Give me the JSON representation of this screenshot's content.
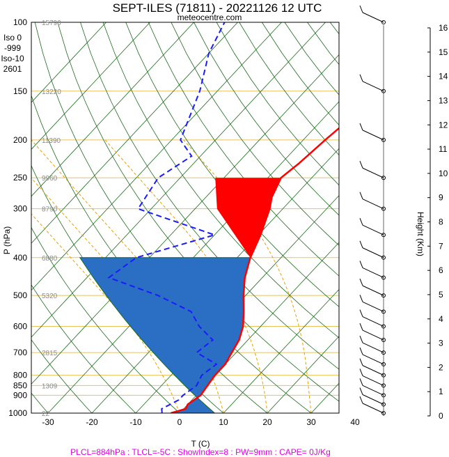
{
  "chart_data": {
    "type": "line",
    "title": "SEPT-ILES (71811) - 20221126 12 UTC",
    "subtitle": "meteocentre.com",
    "xlabel": "T (C)",
    "ylabel": "P (hPa)",
    "y2label": "Height (Km)",
    "x_ticks": [
      "-30",
      "-20",
      "-10",
      "0",
      "10",
      "20",
      "30",
      "40"
    ],
    "p_ticks": [
      "100",
      "150",
      "200",
      "250",
      "300",
      "400",
      "500",
      "600",
      "700",
      "800",
      "850",
      "900",
      "1000"
    ],
    "height_ticks": [
      "0",
      "1",
      "2",
      "3",
      "4",
      "5",
      "6",
      "7",
      "8",
      "9",
      "10",
      "11",
      "12",
      "13",
      "14",
      "15",
      "16"
    ],
    "geopotential_labels": [
      {
        "p": 100,
        "text": "15790"
      },
      {
        "p": 150,
        "text": "13220"
      },
      {
        "p": 200,
        "text": "11390"
      },
      {
        "p": 250,
        "text": "9960"
      },
      {
        "p": 300,
        "text": "8790"
      },
      {
        "p": 400,
        "text": "6880"
      },
      {
        "p": 500,
        "text": "5320"
      },
      {
        "p": 700,
        "text": "2815"
      },
      {
        "p": 850,
        "text": "1309"
      },
      {
        "p": 1000,
        "text": "22"
      }
    ],
    "freezing_info": [
      "Iso 0",
      "-999",
      "Iso-10",
      "2601"
    ],
    "temperature_profile": [
      {
        "p": 1000,
        "t": -2
      },
      {
        "p": 975,
        "t": 0.5
      },
      {
        "p": 950,
        "t": 0
      },
      {
        "p": 925,
        "t": 0.5
      },
      {
        "p": 900,
        "t": 1
      },
      {
        "p": 850,
        "t": 0.5
      },
      {
        "p": 800,
        "t": 0
      },
      {
        "p": 750,
        "t": 0
      },
      {
        "p": 700,
        "t": -1
      },
      {
        "p": 650,
        "t": -2
      },
      {
        "p": 600,
        "t": -4
      },
      {
        "p": 550,
        "t": -7
      },
      {
        "p": 500,
        "t": -10.5
      },
      {
        "p": 450,
        "t": -14
      },
      {
        "p": 400,
        "t": -17
      },
      {
        "p": 350,
        "t": -19.5
      },
      {
        "p": 300,
        "t": -23
      },
      {
        "p": 280,
        "t": -25
      },
      {
        "p": 250,
        "t": -27
      },
      {
        "p": 230,
        "t": -26
      },
      {
        "p": 200,
        "t": -25
      },
      {
        "p": 180,
        "t": -24
      },
      {
        "p": 150,
        "t": -18
      },
      {
        "p": 120,
        "t": -12
      },
      {
        "p": 100,
        "t": -7
      }
    ],
    "dewpoint_profile": [
      {
        "p": 1000,
        "t": -4
      },
      {
        "p": 975,
        "t": -5
      },
      {
        "p": 950,
        "t": -4
      },
      {
        "p": 925,
        "t": -3
      },
      {
        "p": 900,
        "t": -3
      },
      {
        "p": 850,
        "t": -2
      },
      {
        "p": 800,
        "t": -3
      },
      {
        "p": 750,
        "t": -2
      },
      {
        "p": 700,
        "t": -9
      },
      {
        "p": 650,
        "t": -8
      },
      {
        "p": 600,
        "t": -14
      },
      {
        "p": 550,
        "t": -19
      },
      {
        "p": 500,
        "t": -30
      },
      {
        "p": 450,
        "t": -45
      },
      {
        "p": 400,
        "t": -43
      },
      {
        "p": 350,
        "t": -30
      },
      {
        "p": 300,
        "t": -53
      },
      {
        "p": 250,
        "t": -55
      },
      {
        "p": 220,
        "t": -52
      },
      {
        "p": 200,
        "t": -58
      },
      {
        "p": 150,
        "t": -64
      },
      {
        "p": 120,
        "t": -70
      },
      {
        "p": 100,
        "t": -73
      }
    ],
    "footer": "PLCL=884hPa : TLCL=-5C : ShowIndex=8 : PW=9mm : CAPE= 0J/Kg"
  },
  "colors": {
    "isobar": "#e8c25a",
    "dry_adiabat": "#1a6b1a",
    "moist_adiabat": "#e8a000",
    "temperature": "#ff0000",
    "dewpoint": "#1a1aff",
    "cape_fill": "#ff0000",
    "cin_fill": "#2a6fc4",
    "parcel_fill": "#00dd00",
    "freezing_label": "#e8a000",
    "footer": "#e000e0"
  }
}
